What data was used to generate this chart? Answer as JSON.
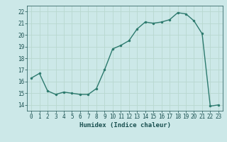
{
  "x": [
    0,
    1,
    2,
    3,
    4,
    5,
    6,
    7,
    8,
    9,
    10,
    11,
    12,
    13,
    14,
    15,
    16,
    17,
    18,
    19,
    20,
    21,
    22,
    23
  ],
  "y": [
    16.3,
    16.7,
    15.2,
    14.9,
    15.1,
    15.0,
    14.9,
    14.9,
    15.4,
    17.0,
    18.8,
    19.1,
    19.5,
    20.5,
    21.1,
    21.0,
    21.1,
    21.3,
    21.9,
    21.8,
    21.2,
    20.1,
    13.9,
    14.0
  ],
  "line_color": "#2d7a6e",
  "marker": "o",
  "markersize": 2.2,
  "linewidth": 1.0,
  "xlabel": "Humidex (Indice chaleur)",
  "xlim": [
    -0.5,
    23.5
  ],
  "ylim": [
    13.5,
    22.5
  ],
  "yticks": [
    14,
    15,
    16,
    17,
    18,
    19,
    20,
    21,
    22
  ],
  "xticks": [
    0,
    1,
    2,
    3,
    4,
    5,
    6,
    7,
    8,
    9,
    10,
    11,
    12,
    13,
    14,
    15,
    16,
    17,
    18,
    19,
    20,
    21,
    22,
    23
  ],
  "bg_color": "#cce8e8",
  "grid_color": "#b8d8d0",
  "text_color": "#1a5050",
  "label_fontsize": 6.5,
  "tick_fontsize": 5.5
}
